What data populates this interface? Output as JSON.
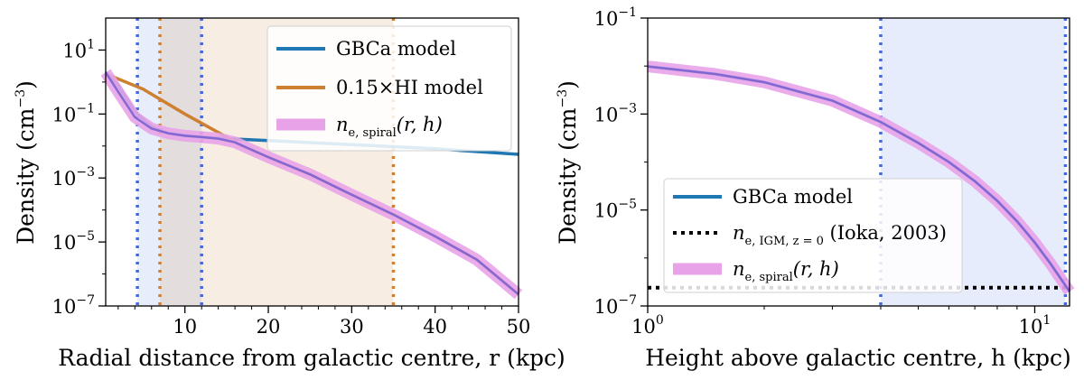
{
  "chart_data": [
    {
      "type": "line",
      "xscale": "linear",
      "yscale": "log",
      "xlabel": "Radial distance from galactic centre,  r (kpc)",
      "ylabel_main": "Density (cm",
      "ylabel_exp": "−3",
      "ylabel_close": ")",
      "xlim": [
        0.5,
        50
      ],
      "ylim": [
        1e-07,
        100
      ],
      "xticks": [
        {
          "value": 10,
          "label": "10"
        },
        {
          "value": 20,
          "label": "20"
        },
        {
          "value": 30,
          "label": "30"
        },
        {
          "value": 40,
          "label": "40"
        },
        {
          "value": 50,
          "label": "50"
        }
      ],
      "yticks": [
        {
          "value": 1e-07,
          "base": "10",
          "exp": "−7"
        },
        {
          "value": 1e-05,
          "base": "10",
          "exp": "−5"
        },
        {
          "value": 0.001,
          "base": "10",
          "exp": "−3"
        },
        {
          "value": 0.1,
          "base": "10",
          "exp": "−1"
        },
        {
          "value": 10,
          "base": "10",
          "exp": "1"
        }
      ],
      "shaded_regions": [
        {
          "from": 4.3,
          "to": 12,
          "color": "#4169e1",
          "opacity": 0.12
        },
        {
          "from": 7,
          "to": 35,
          "color": "#cd853f",
          "opacity": 0.15
        }
      ],
      "vlines": [
        {
          "x": 4.3,
          "color": "#4169e1"
        },
        {
          "x": 12,
          "color": "#4169e1"
        },
        {
          "x": 7,
          "color": "#cd7f32"
        },
        {
          "x": 35,
          "color": "#cd7f32"
        }
      ],
      "legend": {
        "position": "top-right",
        "entries": [
          {
            "label": "GBCa model",
            "style": "blue-line"
          },
          {
            "label": "0.15×HI model",
            "style": "orange-line"
          },
          {
            "label_main": "n",
            "label_sub": "e, spiral",
            "label_args": "(r, h)",
            "style": "pink-band"
          }
        ]
      },
      "series": [
        {
          "name": "GBCa model",
          "color": "#1f77b4",
          "points": [
            [
              0.5,
              2.0
            ],
            [
              2,
              0.8
            ],
            [
              4,
              0.12
            ],
            [
              6,
              0.04
            ],
            [
              8,
              0.025
            ],
            [
              10,
              0.021
            ],
            [
              12,
              0.019
            ],
            [
              15,
              0.017
            ],
            [
              20,
              0.0148
            ],
            [
              30,
              0.011
            ],
            [
              40,
              0.0082
            ],
            [
              50,
              0.0055
            ]
          ]
        },
        {
          "name": "0.15×HI model",
          "color": "#cd7f32",
          "points": [
            [
              0.5,
              1.8
            ],
            [
              5,
              0.6
            ],
            [
              10,
              0.1
            ],
            [
              15,
              0.019
            ],
            [
              17,
              0.0095
            ],
            [
              20,
              0.0045
            ],
            [
              25,
              0.0013
            ],
            [
              30,
              0.0003
            ],
            [
              35,
              7.2e-05
            ],
            [
              40,
              1.5e-05
            ],
            [
              45,
              2.8e-06
            ],
            [
              50,
              2.3e-07
            ]
          ]
        },
        {
          "name": "n_e,spiral(r,h)",
          "color": "#6a5acd",
          "band_color": "#e8a3e8",
          "points": [
            [
              0.5,
              2.0
            ],
            [
              2,
              0.5
            ],
            [
              4,
              0.08
            ],
            [
              6,
              0.035
            ],
            [
              8,
              0.025
            ],
            [
              10,
              0.021
            ],
            [
              12,
              0.019
            ],
            [
              14,
              0.017
            ],
            [
              16,
              0.013
            ],
            [
              20,
              0.0045
            ],
            [
              25,
              0.0013
            ],
            [
              30,
              0.0003
            ],
            [
              35,
              7.2e-05
            ],
            [
              40,
              1.5e-05
            ],
            [
              45,
              2.8e-06
            ],
            [
              50,
              2.3e-07
            ]
          ]
        }
      ]
    },
    {
      "type": "line",
      "xscale": "log",
      "yscale": "log",
      "xlabel": "Height above galactic centre,  h (kpc)",
      "ylabel_main": "Density (cm",
      "ylabel_exp": "−3",
      "ylabel_close": ")",
      "xlim": [
        1,
        12.3
      ],
      "ylim": [
        1e-07,
        0.1
      ],
      "xticks": [
        {
          "value": 1,
          "base": "10",
          "exp": "0"
        },
        {
          "value": 10,
          "base": "10",
          "exp": "1"
        }
      ],
      "yticks": [
        {
          "value": 1e-07,
          "base": "10",
          "exp": "−7"
        },
        {
          "value": 1e-05,
          "base": "10",
          "exp": "−5"
        },
        {
          "value": 0.001,
          "base": "10",
          "exp": "−3"
        },
        {
          "value": 0.1,
          "base": "10",
          "exp": "−1"
        }
      ],
      "shaded_regions": [
        {
          "from": 4,
          "to": 12,
          "color": "#4169e1",
          "opacity": 0.13
        }
      ],
      "vlines": [
        {
          "x": 4,
          "color": "#4169e1"
        },
        {
          "x": 12,
          "color": "#4169e1"
        }
      ],
      "legend": {
        "position": "bottom-left",
        "entries": [
          {
            "label": "GBCa model",
            "style": "blue-line"
          },
          {
            "label_main": "n",
            "label_sub": "e, IGM, z = 0",
            "label_args": " (Ioka,  2003)",
            "style": "black-dotted"
          },
          {
            "label_main": "n",
            "label_sub": "e, spiral",
            "label_args": "(r, h)",
            "style": "pink-band"
          }
        ]
      },
      "series": [
        {
          "name": "GBCa model",
          "color": "#1f77b4",
          "points": [
            [
              1,
              0.0098
            ],
            [
              1.5,
              0.0068
            ],
            [
              2,
              0.0046
            ],
            [
              3,
              0.0019
            ],
            [
              4,
              0.00068
            ],
            [
              5,
              0.00025
            ],
            [
              6,
              0.0001
            ],
            [
              7,
              4e-05
            ],
            [
              8,
              1.55e-05
            ],
            [
              9,
              5.8e-06
            ],
            [
              10,
              2.1e-06
            ],
            [
              11,
              7.5e-07
            ],
            [
              12.3,
              2e-07
            ]
          ]
        },
        {
          "name": "n_e,IGM,z=0",
          "color": "#000000",
          "style": "dotted",
          "points": [
            [
              1,
              2.4e-07
            ],
            [
              12.3,
              2.4e-07
            ]
          ]
        },
        {
          "name": "n_e,spiral(r,h)",
          "color": "#6a5acd",
          "band_color": "#e8a3e8",
          "points": [
            [
              1,
              0.0098
            ],
            [
              1.5,
              0.0068
            ],
            [
              2,
              0.0046
            ],
            [
              3,
              0.0019
            ],
            [
              4,
              0.00068
            ],
            [
              5,
              0.00025
            ],
            [
              6,
              0.0001
            ],
            [
              7,
              4e-05
            ],
            [
              8,
              1.55e-05
            ],
            [
              9,
              5.8e-06
            ],
            [
              10,
              2.1e-06
            ],
            [
              11,
              7.5e-07
            ],
            [
              12.3,
              2e-07
            ]
          ]
        }
      ]
    }
  ]
}
